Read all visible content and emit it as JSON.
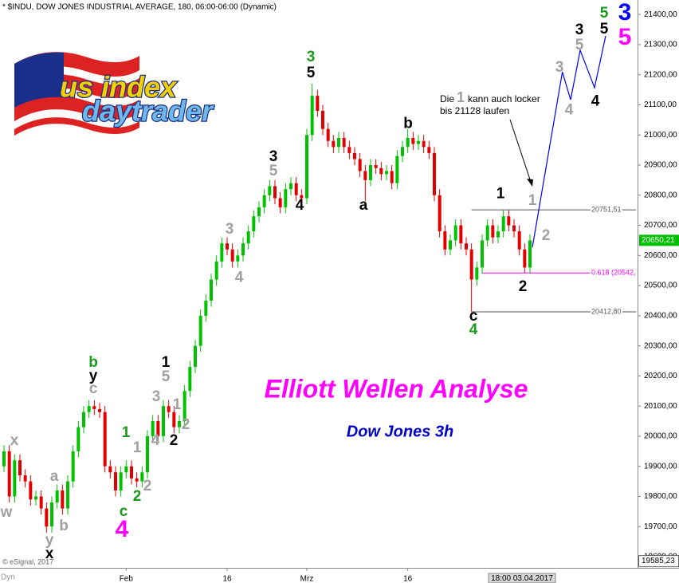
{
  "chart_data": {
    "type": "candlestick",
    "header": "* $INDU, DOW JONES INDUSTRIAL AVERAGE, 180, 06:00-06:00 (Dynamic)",
    "title": "Elliott Wellen Analyse",
    "subtitle": "Dow Jones 3h",
    "logo": {
      "line1": "us index",
      "line2": "daytrader"
    },
    "note": {
      "word1": "Die",
      "wave": "1",
      "word2": "kann auch locker",
      "line2": "bis 21128 laufen"
    },
    "copyright": "© eSignal, 2017",
    "corner_label": "Dyn",
    "up_color": "#00c000",
    "down_color": "#e00000",
    "xlim": [
      -0.75,
      119.25
    ],
    "xticks": [
      {
        "value": 23,
        "label": "Feb"
      },
      {
        "value": 42,
        "label": "16"
      },
      {
        "value": 57,
        "label": "Mrz"
      },
      {
        "value": 76,
        "label": "16"
      }
    ],
    "ylim": [
      19563,
      21448
    ],
    "yticks": [
      {
        "value": 19600,
        "label": "19600,00"
      },
      {
        "value": 19700,
        "label": "19700,00"
      },
      {
        "value": 19800,
        "label": "19800,00"
      },
      {
        "value": 19900,
        "label": "19900,00"
      },
      {
        "value": 20000,
        "label": "20000,00"
      },
      {
        "value": 20100,
        "label": "20100,00"
      },
      {
        "value": 20200,
        "label": "20200,00"
      },
      {
        "value": 20300,
        "label": "20300,00"
      },
      {
        "value": 20400,
        "label": "20400,00"
      },
      {
        "value": 20500,
        "label": "20500,00"
      },
      {
        "value": 20600,
        "label": "20600,00"
      },
      {
        "value": 20700,
        "label": "20700,00"
      },
      {
        "value": 20800,
        "label": "20800,00"
      },
      {
        "value": 20900,
        "label": "20900,00"
      },
      {
        "value": 21000,
        "label": "21000,00"
      },
      {
        "value": 21100,
        "label": "21100,00"
      },
      {
        "value": 21200,
        "label": "21200,00"
      },
      {
        "value": 21300,
        "label": "21300,00"
      },
      {
        "value": 21400,
        "label": "21400,00"
      }
    ],
    "open": [
      19900,
      19950,
      19800,
      19920,
      19870,
      19850,
      19790,
      19800,
      19760,
      19700,
      19780,
      19820,
      19760,
      19850,
      19950,
      20030,
      20080,
      20100,
      20090,
      20080,
      19900,
      19880,
      19820,
      19880,
      19900,
      19860,
      19850,
      19880,
      20000,
      20050,
      20000,
      20100,
      20080,
      20030,
      20050,
      20150,
      20230,
      20300,
      20400,
      20450,
      20520,
      20580,
      20640,
      20620,
      20580,
      20600,
      20640,
      20680,
      20730,
      20760,
      20800,
      20830,
      20790,
      20760,
      20820,
      20840,
      20800,
      20790,
      21000,
      21130,
      21080,
      21020,
      20980,
      20960,
      20990,
      20960,
      20940,
      20920,
      20880,
      20850,
      20900,
      20890,
      20870,
      20880,
      20840,
      20930,
      20960,
      20990,
      20970,
      20980,
      20960,
      20940,
      20800,
      20680,
      20620,
      20650,
      20700,
      20640,
      20620,
      20520,
      20560,
      20650,
      20700,
      20660,
      20680,
      20730,
      20700,
      20680,
      20620,
      20560
    ],
    "high": [
      19970,
      19970,
      19940,
      19940,
      19890,
      19870,
      19820,
      19820,
      19780,
      19800,
      19840,
      19840,
      19870,
      19970,
      20050,
      20100,
      20120,
      20120,
      20110,
      20100,
      19920,
      19900,
      19900,
      19920,
      19920,
      19880,
      19900,
      20020,
      20070,
      20070,
      20120,
      20120,
      20100,
      20070,
      20170,
      20250,
      20320,
      20420,
      20470,
      20540,
      20600,
      20660,
      20660,
      20640,
      20620,
      20660,
      20700,
      20750,
      20780,
      20820,
      20850,
      20850,
      20810,
      20840,
      20860,
      20860,
      20820,
      21020,
      21170,
      21150,
      21100,
      21040,
      21000,
      21010,
      21010,
      20980,
      20960,
      20940,
      20900,
      20920,
      20920,
      20910,
      20900,
      20900,
      20950,
      20980,
      21020,
      21010,
      21000,
      21000,
      20980,
      20960,
      20820,
      20700,
      20670,
      20720,
      20720,
      20660,
      20640,
      20580,
      20670,
      20720,
      20720,
      20700,
      20751,
      20750,
      20720,
      20700,
      20640,
      20670
    ],
    "low": [
      19880,
      19780,
      19780,
      19850,
      19830,
      19770,
      19770,
      19740,
      19680,
      19680,
      19760,
      19740,
      19740,
      19830,
      19930,
      20010,
      20060,
      20070,
      20060,
      19880,
      19860,
      19800,
      19800,
      19860,
      19840,
      19830,
      19830,
      19860,
      19980,
      19980,
      19980,
      20060,
      20010,
      20010,
      20030,
      20130,
      20210,
      20280,
      20380,
      20430,
      20500,
      20560,
      20600,
      20560,
      20560,
      20580,
      20620,
      20660,
      20710,
      20740,
      20780,
      20770,
      20740,
      20740,
      20800,
      20780,
      20770,
      20770,
      20980,
      21060,
      21000,
      20960,
      20940,
      20940,
      20940,
      20920,
      20900,
      20860,
      20780,
      20830,
      20870,
      20850,
      20850,
      20820,
      20820,
      20910,
      20940,
      20950,
      20950,
      20940,
      20920,
      20780,
      20660,
      20600,
      20600,
      20630,
      20620,
      20600,
      20412,
      20500,
      20540,
      20630,
      20640,
      20640,
      20660,
      20680,
      20660,
      20600,
      20542,
      20540
    ],
    "close": [
      19950,
      19800,
      19920,
      19870,
      19850,
      19790,
      19800,
      19760,
      19700,
      19780,
      19820,
      19760,
      19850,
      19950,
      20030,
      20080,
      20100,
      20090,
      20080,
      19900,
      19880,
      19820,
      19880,
      19900,
      19860,
      19850,
      19880,
      20000,
      20050,
      20000,
      20100,
      20080,
      20030,
      20050,
      20150,
      20230,
      20300,
      20400,
      20450,
      20520,
      20580,
      20640,
      20620,
      20580,
      20600,
      20640,
      20680,
      20730,
      20760,
      20800,
      20830,
      20790,
      20760,
      20820,
      20840,
      20800,
      20790,
      21000,
      21130,
      21080,
      21020,
      20980,
      20960,
      20990,
      20960,
      20940,
      20920,
      20880,
      20850,
      20900,
      20890,
      20870,
      20880,
      20840,
      20930,
      20960,
      20990,
      20970,
      20980,
      20960,
      20940,
      20800,
      20680,
      20620,
      20650,
      20700,
      20640,
      20620,
      20520,
      20560,
      20650,
      20700,
      20660,
      20680,
      20730,
      20700,
      20680,
      20620,
      20560,
      20650
    ],
    "projection": {
      "color": "#0000ff",
      "x": [
        99.45,
        105.1,
        106.65,
        108.45,
        111.15,
        113.25
      ],
      "values": [
        20627,
        21209,
        21117,
        21281,
        21157,
        21329
      ]
    },
    "levels": [
      {
        "value": 20751.51,
        "label": "20751,51",
        "color": "#555555",
        "x_start": 88
      },
      {
        "value": 20542,
        "label": "0.618 (20542,",
        "color": "#ff00ff",
        "x_start": 90
      },
      {
        "value": 20412.8,
        "label": "20412,80",
        "color": "#555555",
        "x_start": 88
      }
    ],
    "last_price": {
      "value": 20650.21,
      "label": "20650,21",
      "color": "#00c000"
    },
    "crosshair_price": {
      "value": 19585.23,
      "label": "19585,23"
    },
    "crosshair_date": {
      "x": 97.5,
      "label": "18:00 03.04.2017"
    },
    "annotations": [
      {
        "text": "x",
        "color": "#a0a0a0",
        "x": 1.95,
        "y": 19984
      },
      {
        "text": "w",
        "color": "#a0a0a0",
        "x": 0.45,
        "y": 19746
      },
      {
        "text": "y",
        "color": "#a0a0a0",
        "x": 8.55,
        "y": 19653
      },
      {
        "text": "x",
        "color": "#000000",
        "x": 8.55,
        "y": 19608
      },
      {
        "text": "a",
        "color": "#a0a0a0",
        "x": 9.45,
        "y": 19865
      },
      {
        "text": "b",
        "color": "#a0a0a0",
        "x": 11.25,
        "y": 19701
      },
      {
        "text": "b",
        "color": "#1a9a1a",
        "x": 16.8,
        "y": 20243
      },
      {
        "text": "y",
        "color": "#000000",
        "x": 16.8,
        "y": 20198
      },
      {
        "text": "c",
        "color": "#a0a0a0",
        "x": 16.8,
        "y": 20156
      },
      {
        "text": "1",
        "color": "#1a9a1a",
        "x": 22.95,
        "y": 20010
      },
      {
        "text": "1",
        "color": "#a0a0a0",
        "x": 25.05,
        "y": 19960
      },
      {
        "text": "c",
        "color": "#1a9a1a",
        "x": 22.5,
        "y": 19748
      },
      {
        "text": "2",
        "color": "#1a9a1a",
        "x": 25.05,
        "y": 19799
      },
      {
        "text": "2",
        "color": "#a0a0a0",
        "x": 27,
        "y": 19833
      },
      {
        "text": "4",
        "color": "#ff00ff",
        "x": 22.2,
        "y": 19687,
        "large": true
      },
      {
        "text": "3",
        "color": "#a0a0a0",
        "x": 28.65,
        "y": 20129
      },
      {
        "text": "4",
        "color": "#a0a0a0",
        "x": 28.5,
        "y": 19984
      },
      {
        "text": "1",
        "color": "#000000",
        "x": 30.45,
        "y": 20243
      },
      {
        "text": "5",
        "color": "#a0a0a0",
        "x": 30.45,
        "y": 20196
      },
      {
        "text": "1",
        "color": "#a0a0a0",
        "x": 32.55,
        "y": 20103
      },
      {
        "text": "2",
        "color": "#a0a0a0",
        "x": 34.2,
        "y": 20037
      },
      {
        "text": "2",
        "color": "#000000",
        "x": 31.95,
        "y": 19984
      },
      {
        "text": "3",
        "color": "#a0a0a0",
        "x": 42.45,
        "y": 20685
      },
      {
        "text": "4",
        "color": "#a0a0a0",
        "x": 44.25,
        "y": 20526
      },
      {
        "text": "3",
        "color": "#000000",
        "x": 50.7,
        "y": 20926
      },
      {
        "text": "5",
        "color": "#a0a0a0",
        "x": 50.7,
        "y": 20879
      },
      {
        "text": "4",
        "color": "#000000",
        "x": 55.65,
        "y": 20765
      },
      {
        "text": "3",
        "color": "#1a9a1a",
        "x": 57.75,
        "y": 21257
      },
      {
        "text": "5",
        "color": "#000000",
        "x": 57.75,
        "y": 21204
      },
      {
        "text": "a",
        "color": "#000000",
        "x": 67.65,
        "y": 20765
      },
      {
        "text": "b",
        "color": "#000000",
        "x": 76.05,
        "y": 21037
      },
      {
        "text": "c",
        "color": "#000000",
        "x": 88.35,
        "y": 20397
      },
      {
        "text": "4",
        "color": "#1a9a1a",
        "x": 88.35,
        "y": 20352
      },
      {
        "text": "1",
        "color": "#000000",
        "x": 93.45,
        "y": 20804
      },
      {
        "text": "2",
        "color": "#000000",
        "x": 97.65,
        "y": 20495
      },
      {
        "text": "1",
        "color": "#a0a0a0",
        "x": 99.45,
        "y": 20781
      },
      {
        "text": "2",
        "color": "#a0a0a0",
        "x": 102,
        "y": 20664
      },
      {
        "text": "3",
        "color": "#a0a0a0",
        "x": 104.55,
        "y": 21223
      },
      {
        "text": "4",
        "color": "#a0a0a0",
        "x": 106.35,
        "y": 21082
      },
      {
        "text": "3",
        "color": "#000000",
        "x": 108.3,
        "y": 21347
      },
      {
        "text": "5",
        "color": "#a0a0a0",
        "x": 108.3,
        "y": 21297
      },
      {
        "text": "4",
        "color": "#000000",
        "x": 111.3,
        "y": 21111
      },
      {
        "text": "5",
        "color": "#1a9a1a",
        "x": 112.95,
        "y": 21403
      },
      {
        "text": "5",
        "color": "#000000",
        "x": 112.95,
        "y": 21350
      },
      {
        "text": "3",
        "color": "#0000ff",
        "x": 116.85,
        "y": 21403,
        "large": true
      },
      {
        "text": "5",
        "color": "#ff00ff",
        "x": 116.85,
        "y": 21321,
        "large": true
      }
    ]
  }
}
